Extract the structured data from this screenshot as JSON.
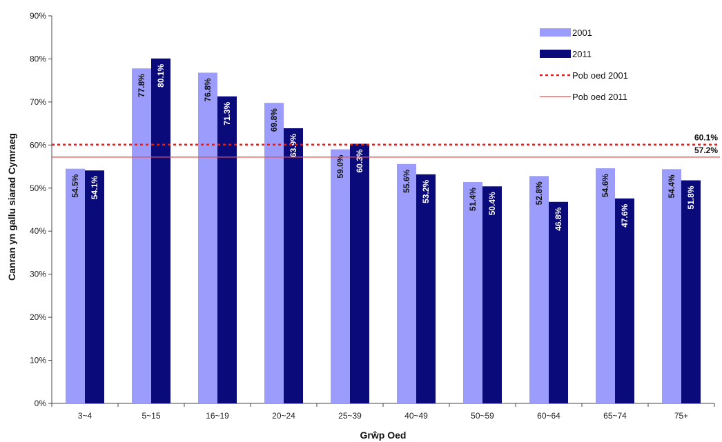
{
  "chart_data": {
    "type": "bar",
    "xlabel": "Grŵp Oed",
    "ylabel": "Canran yn gallu siarad Cymraeg",
    "ylim": [
      0,
      90
    ],
    "y_ticks": [
      "0%",
      "10%",
      "20%",
      "30%",
      "40%",
      "50%",
      "60%",
      "70%",
      "80%",
      "90%"
    ],
    "y_tick_values": [
      0,
      10,
      20,
      30,
      40,
      50,
      60,
      70,
      80,
      90
    ],
    "grid": false,
    "legend_position": "top-right",
    "categories": [
      "3~4",
      "5~15",
      "16~19",
      "20~24",
      "25~39",
      "40~49",
      "50~59",
      "60~64",
      "65~74",
      "75+"
    ],
    "series": [
      {
        "name": "2001",
        "color": "#9b9cfb",
        "values": [
          54.5,
          77.8,
          76.8,
          69.8,
          59.0,
          55.6,
          51.4,
          52.8,
          54.6,
          54.4
        ],
        "labels": [
          "54.5%",
          "77.8%",
          "76.8%",
          "69.8%",
          "59.0%",
          "55.6%",
          "51.4%",
          "52.8%",
          "54.6%",
          "54.4%"
        ]
      },
      {
        "name": "2011",
        "color": "#0a0a7a",
        "values": [
          54.1,
          80.1,
          71.3,
          63.9,
          60.3,
          53.2,
          50.4,
          46.8,
          47.6,
          51.8
        ],
        "labels": [
          "54.1%",
          "80.1%",
          "71.3%",
          "63.9%",
          "60.3%",
          "53.2%",
          "50.4%",
          "46.8%",
          "47.6%",
          "51.8%"
        ]
      }
    ],
    "reference_lines": [
      {
        "name": "Pob oed 2001",
        "value": 60.1,
        "label": "60.1%",
        "style": "dotted",
        "color": "#e21b1b"
      },
      {
        "name": "Pob oed 2011",
        "value": 57.2,
        "label": "57.2%",
        "style": "solid",
        "color": "#f24a4a"
      }
    ]
  }
}
